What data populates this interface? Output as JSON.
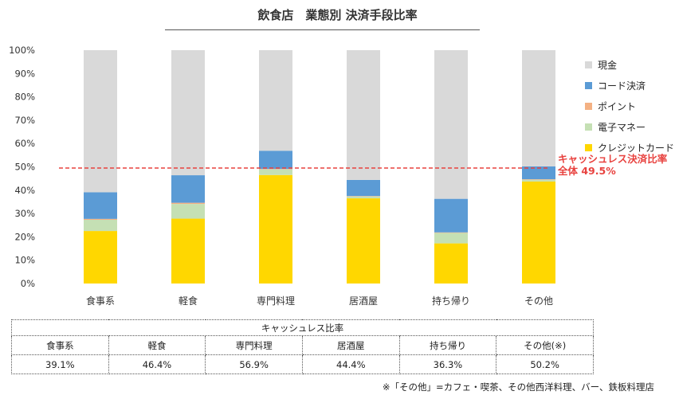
{
  "chart_data": {
    "type": "bar",
    "stacked": true,
    "title": "飲食店　業態別 決済手段比率",
    "categories": [
      "食事系",
      "軽食",
      "専門料理",
      "居酒屋",
      "持ち帰り",
      "その他"
    ],
    "ylim": [
      0,
      100
    ],
    "yticks": [
      "0%",
      "10%",
      "20%",
      "30%",
      "40%",
      "50%",
      "60%",
      "70%",
      "80%",
      "90%",
      "100%"
    ],
    "series": [
      {
        "name": "クレジットカード",
        "color": "#ffd700",
        "values": [
          22.5,
          27.8,
          46.5,
          36.5,
          17.2,
          43.7
        ]
      },
      {
        "name": "電子マネー",
        "color": "#c5e0b4",
        "values": [
          4.8,
          6.3,
          2.4,
          0.8,
          4.5,
          0.8
        ]
      },
      {
        "name": "ポイント",
        "color": "#f4b183",
        "values": [
          0.4,
          0.5,
          0.2,
          0.2,
          0.2,
          0.2
        ]
      },
      {
        "name": "コード決済",
        "color": "#5b9bd5",
        "values": [
          11.4,
          11.8,
          7.8,
          6.9,
          14.4,
          5.5
        ]
      },
      {
        "name": "現金",
        "color": "#d9d9d9",
        "values": [
          60.9,
          53.6,
          43.1,
          55.6,
          63.7,
          49.8
        ]
      }
    ],
    "legend_order": [
      "現金",
      "コード決済",
      "ポイント",
      "電子マネー",
      "クレジットカード"
    ],
    "reference_line": {
      "value": 49.5,
      "color": "#e8423f",
      "label_line1": "キャッシュレス決済比率",
      "label_line2": "全体 49.5%"
    }
  },
  "table": {
    "title": "キャッシュレス比率",
    "headers": [
      "食事系",
      "軽食",
      "専門料理",
      "居酒屋",
      "持ち帰り",
      "その他(※)"
    ],
    "values": [
      "39.1%",
      "46.4%",
      "56.9%",
      "44.4%",
      "36.3%",
      "50.2%"
    ]
  },
  "footnote": "※「その他」=カフェ・喫茶、その他西洋料理、バー、鉄板料理店"
}
